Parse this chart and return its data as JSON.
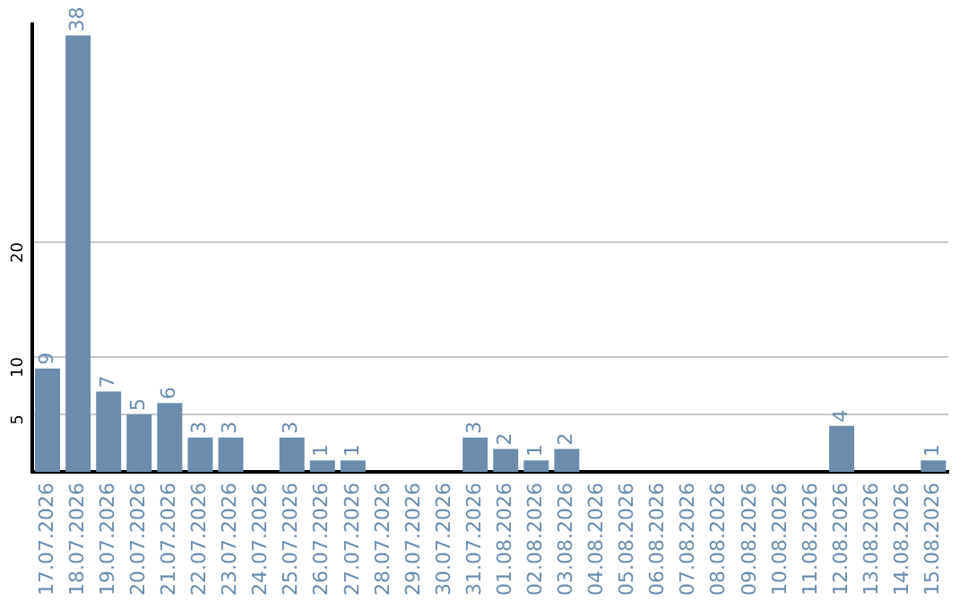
{
  "chart_data": {
    "type": "bar",
    "categories": [
      "17.07.2026",
      "18.07.2026",
      "19.07.2026",
      "20.07.2026",
      "21.07.2026",
      "22.07.2026",
      "23.07.2026",
      "24.07.2026",
      "25.07.2026",
      "26.07.2026",
      "27.07.2026",
      "28.07.2026",
      "29.07.2026",
      "30.07.2026",
      "31.07.2026",
      "01.08.2026",
      "02.08.2026",
      "03.08.2026",
      "04.08.2026",
      "05.08.2026",
      "06.08.2026",
      "07.08.2026",
      "08.08.2026",
      "09.08.2026",
      "10.08.2026",
      "11.08.2026",
      "12.08.2026",
      "13.08.2026",
      "14.08.2026",
      "15.08.2026"
    ],
    "values": [
      9,
      38,
      7,
      5,
      6,
      3,
      3,
      0,
      3,
      1,
      1,
      0,
      0,
      0,
      3,
      2,
      1,
      2,
      0,
      0,
      0,
      0,
      0,
      0,
      0,
      0,
      4,
      0,
      0,
      1
    ],
    "value_labels": [
      "9",
      "38",
      "7",
      "5",
      "6",
      "3",
      "3",
      null,
      "3",
      "1",
      "1",
      null,
      null,
      null,
      "3",
      "2",
      "1",
      "2",
      null,
      null,
      null,
      null,
      null,
      null,
      null,
      null,
      "4",
      null,
      null,
      "1"
    ],
    "color": "#6b8cad",
    "ylim": [
      0,
      39
    ],
    "yticks": [
      5,
      10,
      20
    ],
    "grid": "y",
    "legend": false
  }
}
